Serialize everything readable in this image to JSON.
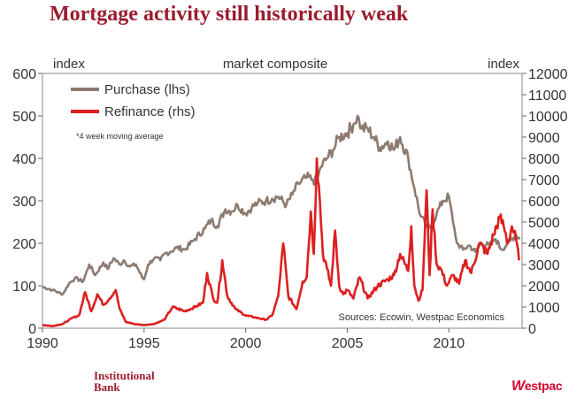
{
  "title": "Mortgage activity still historically weak",
  "branding": {
    "institutional_line1": "Institutional",
    "institutional_line2": "Bank",
    "westpac_mark": "W",
    "westpac_rest": "estpac"
  },
  "chart_data": {
    "type": "line",
    "title": "Mortgage activity still historically weak",
    "subtitle": "market composite",
    "ylabel_left": "index",
    "ylabel_right": "index",
    "xlim": [
      1990,
      2013.6
    ],
    "ylim_left": [
      0,
      600
    ],
    "ylim_right": [
      0,
      12000
    ],
    "x_ticks": [
      1990,
      1995,
      2000,
      2005,
      2010
    ],
    "y_ticks_left": [
      0,
      100,
      200,
      300,
      400,
      500,
      600
    ],
    "y_ticks_right": [
      0,
      1000,
      2000,
      3000,
      4000,
      5000,
      6000,
      7000,
      8000,
      9000,
      10000,
      11000,
      12000
    ],
    "legend": {
      "position": "top-left",
      "entries": [
        {
          "label": "Purchase (lhs)",
          "color": "#8c7b70"
        },
        {
          "label": "Refinance (rhs)",
          "color": "#dd1f1f"
        }
      ]
    },
    "note": "*4 week moving average",
    "source": "Sources: Ecowin, Westpac Economics",
    "series": [
      {
        "name": "Purchase (lhs)",
        "axis": "left",
        "color": "#8c7b70",
        "x": [
          1990.0,
          1990.5,
          1991.0,
          1991.3,
          1991.6,
          1992.0,
          1992.3,
          1992.6,
          1993.0,
          1993.2,
          1993.5,
          1993.8,
          1994.0,
          1994.3,
          1994.6,
          1994.9,
          1995.0,
          1995.2,
          1995.5,
          1995.8,
          1996.0,
          1996.3,
          1996.6,
          1997.0,
          1997.5,
          1998.0,
          1998.3,
          1998.6,
          1999.0,
          1999.3,
          1999.6,
          2000.0,
          2000.3,
          2000.6,
          2001.0,
          2001.3,
          2001.6,
          2002.0,
          2002.3,
          2002.6,
          2003.0,
          2003.3,
          2003.5,
          2003.7,
          2004.0,
          2004.3,
          2004.6,
          2005.0,
          2005.3,
          2005.5,
          2005.7,
          2006.0,
          2006.3,
          2006.6,
          2007.0,
          2007.3,
          2007.6,
          2008.0,
          2008.3,
          2008.6,
          2008.9,
          2009.1,
          2009.4,
          2009.7,
          2010.0,
          2010.2,
          2010.4,
          2010.7,
          2011.0,
          2011.3,
          2011.6,
          2012.0,
          2012.3,
          2012.6,
          2013.0,
          2013.3,
          2013.5
        ],
        "values": [
          97,
          90,
          80,
          105,
          118,
          110,
          150,
          125,
          155,
          140,
          165,
          150,
          160,
          145,
          150,
          120,
          115,
          150,
          165,
          160,
          175,
          180,
          190,
          185,
          210,
          235,
          255,
          240,
          280,
          275,
          290,
          270,
          285,
          295,
          300,
          305,
          310,
          290,
          315,
          340,
          355,
          350,
          345,
          380,
          400,
          420,
          450,
          460,
          480,
          500,
          470,
          470,
          450,
          425,
          440,
          420,
          450,
          400,
          330,
          265,
          240,
          235,
          270,
          300,
          310,
          250,
          200,
          185,
          195,
          180,
          200,
          195,
          210,
          185,
          205,
          220,
          210
        ]
      },
      {
        "name": "Refinance (rhs)",
        "axis": "right",
        "color": "#dd1f1f",
        "x": [
          1990.0,
          1990.5,
          1991.0,
          1991.5,
          1991.8,
          1992.1,
          1992.4,
          1992.7,
          1993.0,
          1993.3,
          1993.6,
          1993.8,
          1994.1,
          1994.5,
          1995.0,
          1995.5,
          1996.0,
          1996.4,
          1997.0,
          1997.5,
          1997.9,
          1998.1,
          1998.4,
          1998.6,
          1998.85,
          1999.1,
          1999.5,
          2000.0,
          2000.5,
          2001.0,
          2001.3,
          2001.6,
          2001.85,
          2002.1,
          2002.5,
          2002.8,
          2003.0,
          2003.2,
          2003.35,
          2003.5,
          2003.65,
          2003.8,
          2004.0,
          2004.2,
          2004.4,
          2004.6,
          2004.8,
          2005.0,
          2005.3,
          2005.6,
          2006.0,
          2006.5,
          2007.0,
          2007.3,
          2007.6,
          2008.0,
          2008.15,
          2008.3,
          2008.5,
          2008.7,
          2008.9,
          2009.05,
          2009.2,
          2009.4,
          2009.6,
          2009.9,
          2010.2,
          2010.5,
          2010.8,
          2011.1,
          2011.5,
          2011.9,
          2012.2,
          2012.5,
          2012.7,
          2012.9,
          2013.1,
          2013.3,
          2013.45
        ],
        "values": [
          150,
          100,
          200,
          500,
          600,
          1700,
          800,
          1600,
          1100,
          1400,
          1800,
          900,
          300,
          200,
          150,
          200,
          400,
          1000,
          800,
          1000,
          1200,
          2600,
          1400,
          1200,
          3200,
          1500,
          900,
          600,
          500,
          400,
          600,
          1500,
          4000,
          1500,
          900,
          2200,
          2400,
          5500,
          3500,
          8000,
          6000,
          3500,
          2800,
          2000,
          4600,
          2000,
          1600,
          1800,
          1400,
          2400,
          1400,
          2000,
          2300,
          2500,
          3500,
          2700,
          4800,
          2000,
          1300,
          1800,
          6500,
          2500,
          5600,
          3000,
          2800,
          2000,
          2500,
          2100,
          3200,
          2600,
          4000,
          3500,
          4400,
          5200,
          4800,
          4000,
          4800,
          4200,
          3200
        ]
      }
    ]
  }
}
